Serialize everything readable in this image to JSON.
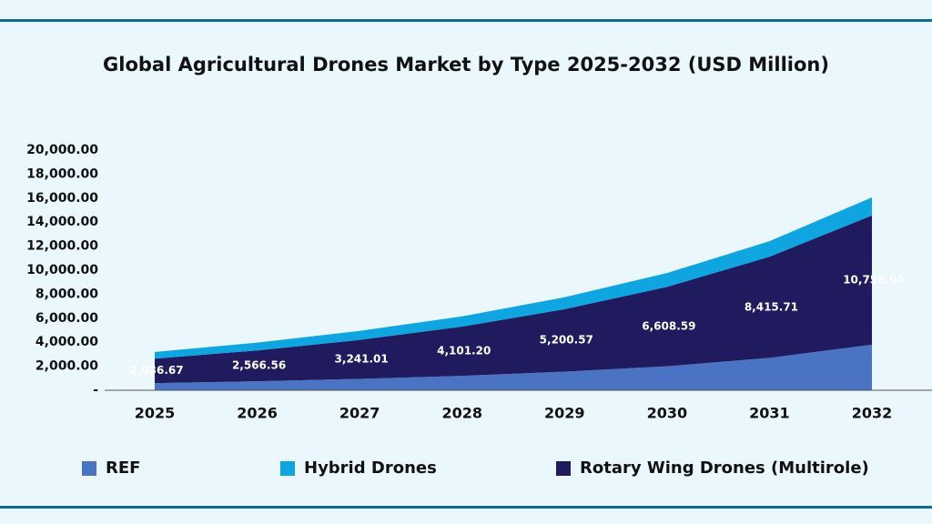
{
  "chart_data": {
    "type": "stacked_area",
    "title": "Global Agricultural Drones Market by Type 2025-2032 (USD Million)",
    "categories": [
      "2025",
      "2026",
      "2027",
      "2028",
      "2029",
      "2030",
      "2031",
      "2032"
    ],
    "series": [
      {
        "name": "REF",
        "color": "#4a73c3",
        "values": [
          600,
          750,
          950,
          1200,
          1550,
          2000,
          2700,
          3800
        ]
      },
      {
        "name": "Hybrid Drones",
        "color": "#0ea5e0",
        "values": [
          550,
          650,
          750,
          850,
          1000,
          1150,
          1300,
          1500
        ]
      },
      {
        "name": "Rotary Wing Drones (Multirole)",
        "color": "#201a5e",
        "values": [
          2036.67,
          2566.56,
          3241.01,
          4101.2,
          5200.57,
          6608.59,
          8415.71,
          10758.04
        ],
        "value_labels": [
          "2,036.67",
          "2,566.56",
          "3,241.01",
          "4,101.20",
          "5,200.57",
          "6,608.59",
          "8,415.71",
          "10,758.04"
        ]
      }
    ],
    "ylim": [
      0,
      20000
    ],
    "yticks": [
      {
        "value": 0,
        "label": "-"
      },
      {
        "value": 2000,
        "label": "2,000.00"
      },
      {
        "value": 4000,
        "label": "4,000.00"
      },
      {
        "value": 6000,
        "label": "6,000.00"
      },
      {
        "value": 8000,
        "label": "8,000.00"
      },
      {
        "value": 10000,
        "label": "10,000.00"
      },
      {
        "value": 12000,
        "label": "12,000.00"
      },
      {
        "value": 14000,
        "label": "14,000.00"
      },
      {
        "value": 16000,
        "label": "16,000.00"
      },
      {
        "value": 18000,
        "label": "18,000.00"
      },
      {
        "value": 20000,
        "label": "20,000.00"
      }
    ]
  }
}
